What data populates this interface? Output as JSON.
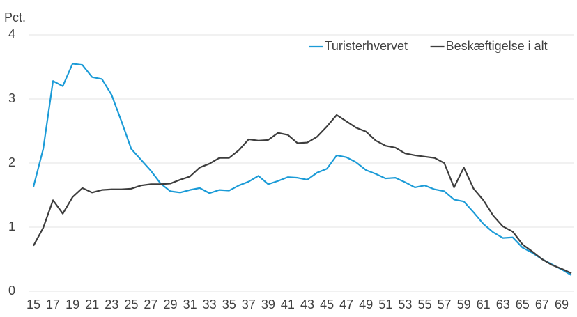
{
  "chart_data": {
    "type": "line",
    "y_label": "Pct.",
    "x": [
      15,
      16,
      17,
      18,
      19,
      20,
      21,
      22,
      23,
      24,
      25,
      26,
      27,
      28,
      29,
      30,
      31,
      32,
      33,
      34,
      35,
      36,
      37,
      38,
      39,
      40,
      41,
      42,
      43,
      44,
      45,
      46,
      47,
      48,
      49,
      50,
      51,
      52,
      53,
      54,
      55,
      56,
      57,
      58,
      59,
      60,
      61,
      62,
      63,
      64,
      65,
      66,
      67,
      68,
      69,
      70
    ],
    "series": [
      {
        "name": "Turisterhvervet",
        "color": "#1b9bd7",
        "values": [
          1.63,
          2.22,
          3.28,
          3.2,
          3.55,
          3.53,
          3.34,
          3.31,
          3.06,
          2.65,
          2.22,
          2.05,
          1.88,
          1.68,
          1.56,
          1.54,
          1.58,
          1.61,
          1.53,
          1.58,
          1.57,
          1.65,
          1.71,
          1.8,
          1.67,
          1.72,
          1.78,
          1.77,
          1.74,
          1.85,
          1.91,
          2.12,
          2.09,
          2.01,
          1.89,
          1.83,
          1.76,
          1.77,
          1.7,
          1.62,
          1.65,
          1.59,
          1.56,
          1.43,
          1.4,
          1.23,
          1.05,
          0.92,
          0.83,
          0.84,
          0.68,
          0.6,
          0.5,
          0.42,
          0.34,
          0.25
        ]
      },
      {
        "name": "Beskæftigelse i alt",
        "color": "#3d3d3d",
        "values": [
          0.71,
          0.99,
          1.42,
          1.21,
          1.47,
          1.61,
          1.54,
          1.58,
          1.59,
          1.59,
          1.6,
          1.65,
          1.67,
          1.67,
          1.68,
          1.74,
          1.79,
          1.93,
          1.99,
          2.08,
          2.08,
          2.2,
          2.37,
          2.35,
          2.36,
          2.47,
          2.44,
          2.31,
          2.32,
          2.41,
          2.57,
          2.75,
          2.65,
          2.55,
          2.49,
          2.35,
          2.27,
          2.24,
          2.15,
          2.12,
          2.1,
          2.08,
          2.0,
          1.62,
          1.93,
          1.6,
          1.42,
          1.18,
          1.01,
          0.93,
          0.73,
          0.62,
          0.5,
          0.41,
          0.35,
          0.28
        ]
      }
    ],
    "xlim": [
      15,
      70
    ],
    "xticks": [
      15,
      17,
      19,
      21,
      23,
      25,
      27,
      29,
      31,
      33,
      35,
      37,
      39,
      41,
      43,
      45,
      47,
      49,
      51,
      53,
      55,
      57,
      59,
      61,
      63,
      65,
      67,
      69
    ],
    "ylim": [
      0,
      4
    ],
    "yticks": [
      0,
      1,
      2,
      3,
      4
    ],
    "grid": true,
    "legend": "top-right"
  }
}
